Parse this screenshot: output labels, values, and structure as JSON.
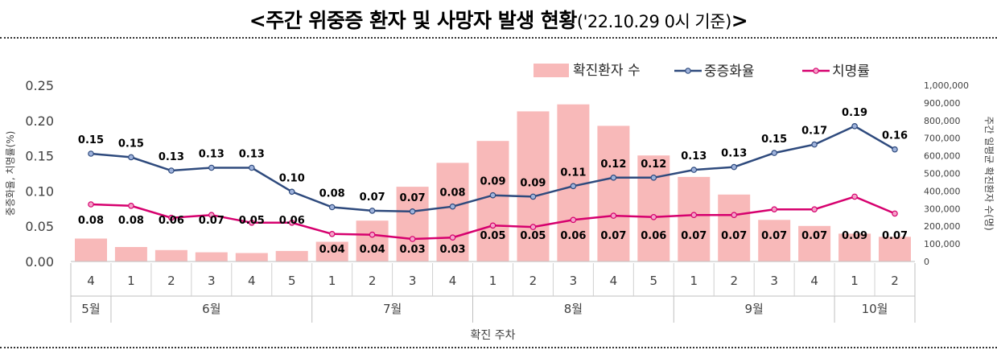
{
  "header": {
    "title_main": "<주간 위중증 환자 및 사망자 발생 현황",
    "title_sub": "('22.10.29 0시 기준)",
    "title_close": ">"
  },
  "colors": {
    "bar": "#f8b9b9",
    "severe_line": "#2e4a7d",
    "severe_marker": "#9fb3dc",
    "fatality_line": "#d6006e",
    "fatality_marker": "#f4a3c9"
  },
  "chart_data": {
    "type": "bar+line",
    "y_left_label": "중증화율, 치명률(%)",
    "y_right_label": "주간 일평균 확진환자 수(명)",
    "x_label": "확진 주차",
    "y_left_ticks": [
      "0.00",
      "0.05",
      "0.10",
      "0.15",
      "0.20",
      "0.25"
    ],
    "y_left_range": [
      0,
      0.25
    ],
    "y_right_ticks": [
      "0",
      "100,000",
      "200,000",
      "300,000",
      "400,000",
      "500,000",
      "600,000",
      "700,000",
      "800,000",
      "900,000",
      "1,000,000"
    ],
    "y_right_range": [
      0,
      1000000
    ],
    "weeks": [
      "4",
      "1",
      "2",
      "3",
      "4",
      "5",
      "1",
      "2",
      "3",
      "4",
      "1",
      "2",
      "3",
      "4",
      "5",
      "1",
      "2",
      "3",
      "4",
      "1",
      "2"
    ],
    "months": [
      {
        "label": "5월",
        "span": 1
      },
      {
        "label": "6월",
        "span": 5
      },
      {
        "label": "7월",
        "span": 4
      },
      {
        "label": "8월",
        "span": 5
      },
      {
        "label": "9월",
        "span": 4
      },
      {
        "label": "10월",
        "span": 2
      }
    ],
    "series": [
      {
        "name": "확진환자 수",
        "kind": "bar",
        "axis": "right",
        "values": [
          130000,
          82000,
          65000,
          52000,
          48000,
          60000,
          112000,
          232000,
          424000,
          560000,
          684000,
          852000,
          892000,
          770000,
          602000,
          480000,
          380000,
          236000,
          202000,
          158000,
          140000
        ]
      },
      {
        "name": "중증화율",
        "kind": "line",
        "axis": "left",
        "values": [
          0.153,
          0.148,
          0.129,
          0.133,
          0.133,
          0.099,
          0.077,
          0.072,
          0.071,
          0.078,
          0.094,
          0.092,
          0.107,
          0.119,
          0.119,
          0.13,
          0.134,
          0.154,
          0.166,
          0.192,
          0.159
        ],
        "labels": [
          "0.15",
          "0.15",
          "0.13",
          "0.13",
          "0.13",
          "0.10",
          "0.08",
          "0.07",
          "0.07",
          "0.08",
          "0.09",
          "0.09",
          "0.11",
          "0.12",
          "0.12",
          "0.13",
          "0.13",
          "0.15",
          "0.17",
          "0.19",
          "0.16"
        ]
      },
      {
        "name": "치명률",
        "kind": "line",
        "axis": "left",
        "values": [
          0.081,
          0.079,
          0.062,
          0.066,
          0.055,
          0.055,
          0.039,
          0.038,
          0.032,
          0.034,
          0.051,
          0.049,
          0.059,
          0.065,
          0.063,
          0.066,
          0.066,
          0.074,
          0.074,
          0.092,
          0.068
        ],
        "labels": [
          "0.08",
          "0.08",
          "0.06",
          "0.07",
          "0.05",
          "0.06",
          "0.04",
          "0.04",
          "0.03",
          "0.03",
          "0.05",
          "0.05",
          "0.06",
          "0.07",
          "0.06",
          "0.07",
          "0.07",
          "0.07",
          "0.07",
          "0.09",
          "0.07"
        ]
      }
    ],
    "legend_position": "top-right"
  }
}
